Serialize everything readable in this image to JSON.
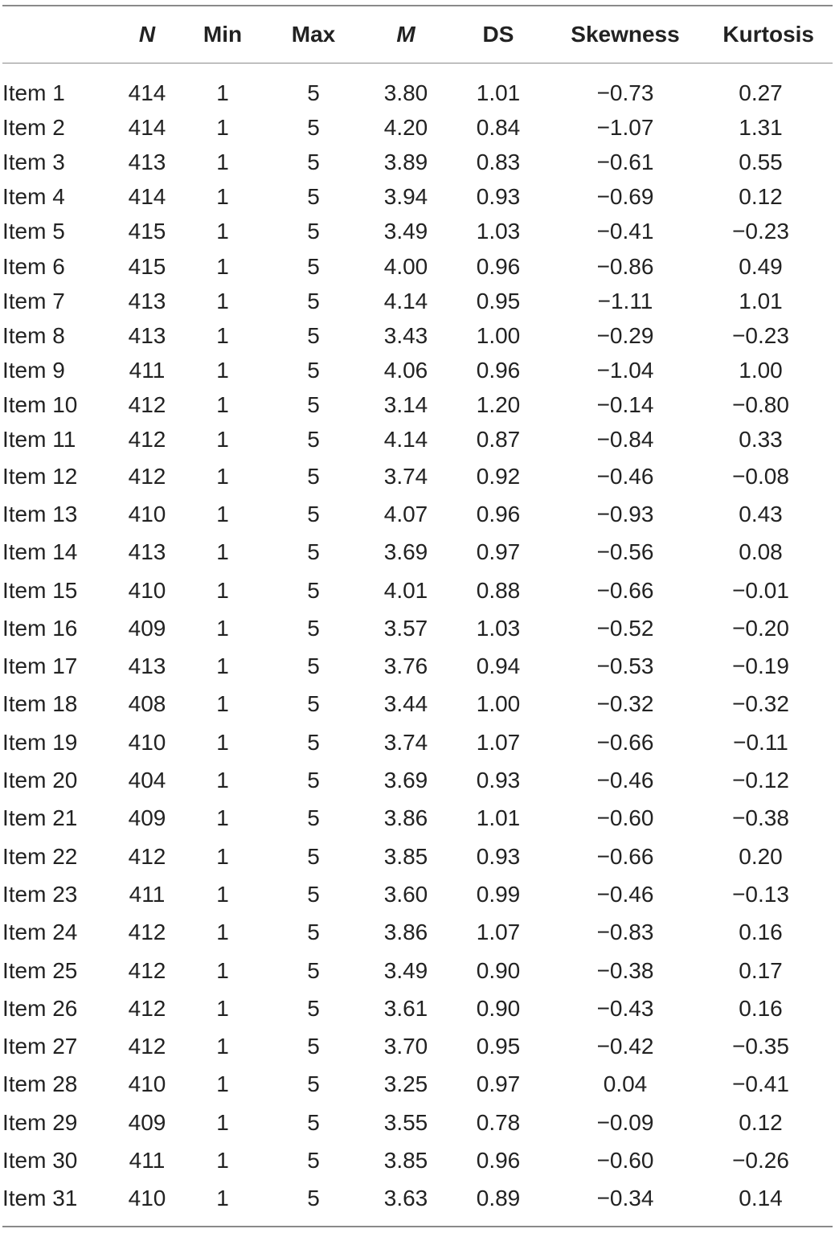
{
  "table": {
    "columns": [
      "",
      "N",
      "Min",
      "Max",
      "M",
      "DS",
      "Skewness",
      "Kurtosis"
    ],
    "rows": [
      [
        "Item 1",
        "414",
        "1",
        "5",
        "3.80",
        "1.01",
        "−0.73",
        "0.27"
      ],
      [
        "Item 2",
        "414",
        "1",
        "5",
        "4.20",
        "0.84",
        "−1.07",
        "1.31"
      ],
      [
        "Item 3",
        "413",
        "1",
        "5",
        "3.89",
        "0.83",
        "−0.61",
        "0.55"
      ],
      [
        "Item 4",
        "414",
        "1",
        "5",
        "3.94",
        "0.93",
        "−0.69",
        "0.12"
      ],
      [
        "Item 5",
        "415",
        "1",
        "5",
        "3.49",
        "1.03",
        "−0.41",
        "−0.23"
      ],
      [
        "Item 6",
        "415",
        "1",
        "5",
        "4.00",
        "0.96",
        "−0.86",
        "0.49"
      ],
      [
        "Item 7",
        "413",
        "1",
        "5",
        "4.14",
        "0.95",
        "−1.11",
        "1.01"
      ],
      [
        "Item 8",
        "413",
        "1",
        "5",
        "3.43",
        "1.00",
        "−0.29",
        "−0.23"
      ],
      [
        "Item 9",
        "411",
        "1",
        "5",
        "4.06",
        "0.96",
        "−1.04",
        "1.00"
      ],
      [
        "Item 10",
        "412",
        "1",
        "5",
        "3.14",
        "1.20",
        "−0.14",
        "−0.80"
      ],
      [
        "Item 11",
        "412",
        "1",
        "5",
        "4.14",
        "0.87",
        "−0.84",
        "0.33"
      ],
      [
        "Item 12",
        "412",
        "1",
        "5",
        "3.74",
        "0.92",
        "−0.46",
        "−0.08"
      ],
      [
        "Item 13",
        "410",
        "1",
        "5",
        "4.07",
        "0.96",
        "−0.93",
        "0.43"
      ],
      [
        "Item 14",
        "413",
        "1",
        "5",
        "3.69",
        "0.97",
        "−0.56",
        "0.08"
      ],
      [
        "Item 15",
        "410",
        "1",
        "5",
        "4.01",
        "0.88",
        "−0.66",
        "−0.01"
      ],
      [
        "Item 16",
        "409",
        "1",
        "5",
        "3.57",
        "1.03",
        "−0.52",
        "−0.20"
      ],
      [
        "Item 17",
        "413",
        "1",
        "5",
        "3.76",
        "0.94",
        "−0.53",
        "−0.19"
      ],
      [
        "Item 18",
        "408",
        "1",
        "5",
        "3.44",
        "1.00",
        "−0.32",
        "−0.32"
      ],
      [
        "Item 19",
        "410",
        "1",
        "5",
        "3.74",
        "1.07",
        "−0.66",
        "−0.11"
      ],
      [
        "Item 20",
        "404",
        "1",
        "5",
        "3.69",
        "0.93",
        "−0.46",
        "−0.12"
      ],
      [
        "Item 21",
        "409",
        "1",
        "5",
        "3.86",
        "1.01",
        "−0.60",
        "−0.38"
      ],
      [
        "Item 22",
        "412",
        "1",
        "5",
        "3.85",
        "0.93",
        "−0.66",
        "0.20"
      ],
      [
        "Item 23",
        "411",
        "1",
        "5",
        "3.60",
        "0.99",
        "−0.46",
        "−0.13"
      ],
      [
        "Item 24",
        "412",
        "1",
        "5",
        "3.86",
        "1.07",
        "−0.83",
        "0.16"
      ],
      [
        "Item 25",
        "412",
        "1",
        "5",
        "3.49",
        "0.90",
        "−0.38",
        "0.17"
      ],
      [
        "Item 26",
        "412",
        "1",
        "5",
        "3.61",
        "0.90",
        "−0.43",
        "0.16"
      ],
      [
        "Item 27",
        "412",
        "1",
        "5",
        "3.70",
        "0.95",
        "−0.42",
        "−0.35"
      ],
      [
        "Item 28",
        "410",
        "1",
        "5",
        "3.25",
        "0.97",
        "0.04",
        "−0.41"
      ],
      [
        "Item 29",
        "409",
        "1",
        "5",
        "3.55",
        "0.78",
        "−0.09",
        "0.12"
      ],
      [
        "Item 30",
        "411",
        "1",
        "5",
        "3.85",
        "0.96",
        "−0.60",
        "−0.26"
      ],
      [
        "Item 31",
        "410",
        "1",
        "5",
        "3.63",
        "0.89",
        "−0.34",
        "0.14"
      ]
    ]
  }
}
